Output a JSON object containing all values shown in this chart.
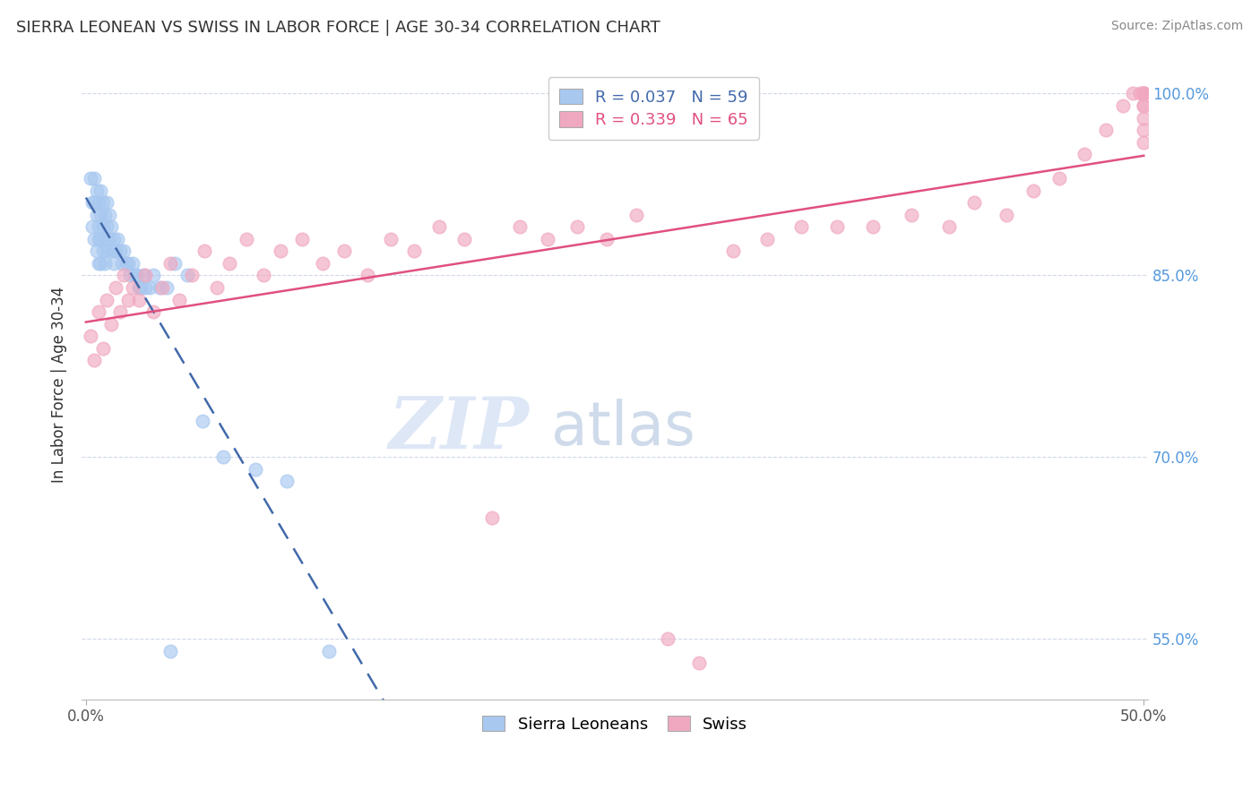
{
  "title": "SIERRA LEONEAN VS SWISS IN LABOR FORCE | AGE 30-34 CORRELATION CHART",
  "source": "Source: ZipAtlas.com",
  "ylabel": "In Labor Force | Age 30-34",
  "xmin": 0.0,
  "xmax": 0.5,
  "ymin": 0.5,
  "ymax": 1.02,
  "yticks": [
    0.55,
    0.7,
    0.85,
    1.0
  ],
  "ytick_labels": [
    "55.0%",
    "70.0%",
    "85.0%",
    "100.0%"
  ],
  "xtick_labels": [
    "0.0%",
    "50.0%"
  ],
  "blue_R": "0.037",
  "blue_N": "59",
  "pink_R": "0.339",
  "pink_N": "65",
  "blue_color": "#a8c8f0",
  "pink_color": "#f0a8c0",
  "blue_line_color": "#4169aa",
  "pink_line_color": "#e05080",
  "background_color": "#ffffff",
  "grid_color": "#d0d8e8",
  "watermark_color": "#c8d8f0",
  "blue_x": [
    0.002,
    0.003,
    0.003,
    0.004,
    0.004,
    0.004,
    0.005,
    0.005,
    0.005,
    0.006,
    0.006,
    0.006,
    0.006,
    0.007,
    0.007,
    0.007,
    0.007,
    0.008,
    0.008,
    0.008,
    0.009,
    0.009,
    0.009,
    0.01,
    0.01,
    0.01,
    0.011,
    0.011,
    0.012,
    0.012,
    0.013,
    0.013,
    0.014,
    0.015,
    0.016,
    0.017,
    0.018,
    0.019,
    0.02,
    0.021,
    0.022,
    0.023,
    0.024,
    0.025,
    0.026,
    0.027,
    0.028,
    0.03,
    0.032,
    0.035,
    0.038,
    0.042,
    0.048,
    0.055,
    0.065,
    0.08,
    0.095,
    0.115,
    0.04
  ],
  "blue_y": [
    0.93,
    0.91,
    0.89,
    0.93,
    0.91,
    0.88,
    0.92,
    0.9,
    0.87,
    0.91,
    0.89,
    0.88,
    0.86,
    0.92,
    0.9,
    0.88,
    0.86,
    0.91,
    0.89,
    0.87,
    0.9,
    0.88,
    0.86,
    0.91,
    0.89,
    0.87,
    0.9,
    0.88,
    0.89,
    0.87,
    0.88,
    0.86,
    0.87,
    0.88,
    0.87,
    0.86,
    0.87,
    0.86,
    0.86,
    0.85,
    0.86,
    0.85,
    0.85,
    0.84,
    0.84,
    0.85,
    0.84,
    0.84,
    0.85,
    0.84,
    0.84,
    0.86,
    0.85,
    0.73,
    0.7,
    0.69,
    0.68,
    0.54,
    0.54
  ],
  "pink_x": [
    0.002,
    0.004,
    0.006,
    0.008,
    0.01,
    0.012,
    0.014,
    0.016,
    0.018,
    0.02,
    0.022,
    0.025,
    0.028,
    0.032,
    0.036,
    0.04,
    0.044,
    0.05,
    0.056,
    0.062,
    0.068,
    0.076,
    0.084,
    0.092,
    0.102,
    0.112,
    0.122,
    0.133,
    0.144,
    0.155,
    0.167,
    0.179,
    0.192,
    0.205,
    0.218,
    0.232,
    0.246,
    0.26,
    0.275,
    0.29,
    0.306,
    0.322,
    0.338,
    0.355,
    0.372,
    0.39,
    0.408,
    0.42,
    0.435,
    0.448,
    0.46,
    0.472,
    0.482,
    0.49,
    0.495,
    0.498,
    0.5,
    0.5,
    0.5,
    0.5,
    0.5,
    0.5,
    0.5,
    0.5,
    0.5
  ],
  "pink_y": [
    0.8,
    0.78,
    0.82,
    0.79,
    0.83,
    0.81,
    0.84,
    0.82,
    0.85,
    0.83,
    0.84,
    0.83,
    0.85,
    0.82,
    0.84,
    0.86,
    0.83,
    0.85,
    0.87,
    0.84,
    0.86,
    0.88,
    0.85,
    0.87,
    0.88,
    0.86,
    0.87,
    0.85,
    0.88,
    0.87,
    0.89,
    0.88,
    0.65,
    0.89,
    0.88,
    0.89,
    0.88,
    0.9,
    0.55,
    0.53,
    0.87,
    0.88,
    0.89,
    0.89,
    0.89,
    0.9,
    0.89,
    0.91,
    0.9,
    0.92,
    0.93,
    0.95,
    0.97,
    0.99,
    1.0,
    1.0,
    1.0,
    1.0,
    1.0,
    1.0,
    0.99,
    0.99,
    0.98,
    0.97,
    0.96
  ]
}
